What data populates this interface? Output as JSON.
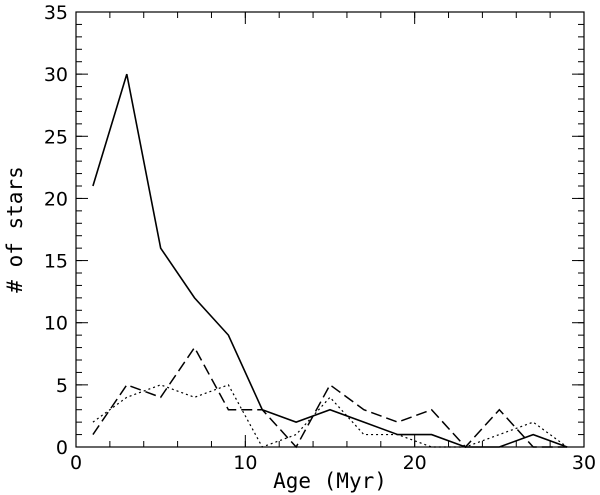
{
  "chart_data": {
    "type": "line",
    "title": "",
    "xlabel": "Age (Myr)",
    "ylabel": "# of stars",
    "xlim": [
      0,
      30
    ],
    "ylim": [
      0,
      35
    ],
    "xticks": [
      0,
      10,
      20,
      30
    ],
    "yticks": [
      0,
      5,
      10,
      15,
      20,
      25,
      30,
      35
    ],
    "x_minor_step": 2,
    "y_minor_step": 1,
    "grid": false,
    "legend": "none",
    "series": [
      {
        "style": "solid",
        "color": "#000000",
        "x": [
          1,
          3,
          5,
          7,
          9,
          11,
          13,
          15,
          17,
          19,
          21,
          23,
          25,
          27,
          29
        ],
        "values": [
          21,
          30,
          16,
          12,
          9,
          3,
          2,
          3,
          2,
          1,
          1,
          0,
          0,
          1,
          0
        ]
      },
      {
        "style": "dashed",
        "color": "#000000",
        "x": [
          1,
          3,
          5,
          7,
          9,
          11,
          13,
          15,
          17,
          19,
          21,
          23,
          25,
          27,
          29
        ],
        "values": [
          1,
          5,
          4,
          8,
          3,
          3,
          0,
          5,
          3,
          2,
          3,
          0,
          3,
          0,
          0
        ]
      },
      {
        "style": "dotted",
        "color": "#000000",
        "x": [
          1,
          3,
          5,
          7,
          9,
          11,
          13,
          15,
          17,
          19,
          21,
          23,
          25,
          27,
          29
        ],
        "values": [
          2,
          4,
          5,
          4,
          5,
          0,
          1,
          4,
          1,
          1,
          0,
          0,
          1,
          2,
          0
        ]
      }
    ]
  }
}
